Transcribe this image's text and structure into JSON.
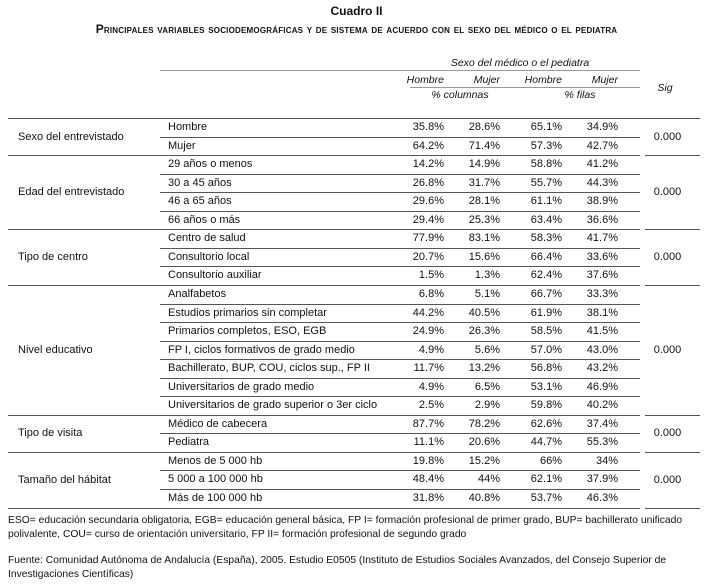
{
  "title": "Cuadro II",
  "subtitle": "Principales variables sociodemográficas y de sistema de acuerdo con el sexo del médico o el pediatra",
  "table": {
    "group_header": "Sexo del médico o el pediatra",
    "columns": [
      "Hombre",
      "Mujer",
      "Hombre",
      "Mujer"
    ],
    "units": [
      "% columnas",
      "% filas"
    ],
    "sig_header": "Sig",
    "groups": [
      {
        "label": "Sexo del entrevistado",
        "sig": "0.000",
        "rows": [
          {
            "label": "Hombre",
            "values": [
              "35.8%",
              "28.6%",
              "65.1%",
              "34.9%"
            ]
          },
          {
            "label": "Mujer",
            "values": [
              "64.2%",
              "71.4%",
              "57.3%",
              "42.7%"
            ]
          }
        ]
      },
      {
        "label": "Edad del entrevistado",
        "sig": "0.000",
        "rows": [
          {
            "label": "29 años o menos",
            "values": [
              "14.2%",
              "14.9%",
              "58.8%",
              "41.2%"
            ]
          },
          {
            "label": "30 a 45 años",
            "values": [
              "26.8%",
              "31.7%",
              "55.7%",
              "44.3%"
            ]
          },
          {
            "label": "46 a 65 años",
            "values": [
              "29.6%",
              "28.1%",
              "61.1%",
              "38.9%"
            ]
          },
          {
            "label": "66 años o más",
            "values": [
              "29.4%",
              "25.3%",
              "63.4%",
              "36.6%"
            ]
          }
        ]
      },
      {
        "label": "Tipo de centro",
        "sig": "0.000",
        "rows": [
          {
            "label": "Centro de salud",
            "values": [
              "77.9%",
              "83.1%",
              "58.3%",
              "41.7%"
            ]
          },
          {
            "label": "Consultorio local",
            "values": [
              "20.7%",
              "15.6%",
              "66.4%",
              "33.6%"
            ]
          },
          {
            "label": "Consultorio auxiliar",
            "values": [
              "1.5%",
              "1.3%",
              "62.4%",
              "37.6%"
            ]
          }
        ]
      },
      {
        "label": "Nivel educativo",
        "sig": "0.000",
        "rows": [
          {
            "label": "Analfabetos",
            "values": [
              "6.8%",
              "5.1%",
              "66.7%",
              "33.3%"
            ]
          },
          {
            "label": "Estudios primarios sin completar",
            "values": [
              "44.2%",
              "40.5%",
              "61.9%",
              "38.1%"
            ]
          },
          {
            "label": "Primarios completos, ESO, EGB",
            "values": [
              "24.9%",
              "26.3%",
              "58.5%",
              "41.5%"
            ]
          },
          {
            "label": "FP I, ciclos formativos de grado medio",
            "values": [
              "4.9%",
              "5.6%",
              "57.0%",
              "43.0%"
            ]
          },
          {
            "label": "Bachillerato, BUP, COU, ciclos sup., FP II",
            "values": [
              "11.7%",
              "13.2%",
              "56.8%",
              "43.2%"
            ]
          },
          {
            "label": "Universitarios de grado medio",
            "values": [
              "4.9%",
              "6.5%",
              "53.1%",
              "46.9%"
            ]
          },
          {
            "label": "Universitarios de grado superior o 3er ciclo",
            "values": [
              "2.5%",
              "2.9%",
              "59.8%",
              "40.2%"
            ]
          }
        ]
      },
      {
        "label": "Tipo de visita",
        "sig": "0.000",
        "rows": [
          {
            "label": "Médico de cabecera",
            "values": [
              "87.7%",
              "78.2%",
              "62.6%",
              "37.4%"
            ]
          },
          {
            "label": "Pediatra",
            "values": [
              "11.1%",
              "20.6%",
              "44.7%",
              "55.3%"
            ]
          }
        ]
      },
      {
        "label": "Tamaño del hábitat",
        "sig": "0.000",
        "rows": [
          {
            "label": "Menos de 5 000 hb",
            "values": [
              "19.8%",
              "15.2%",
              "66%",
              "34%"
            ]
          },
          {
            "label": "5 000 a 100 000 hb",
            "values": [
              "48.4%",
              "44%",
              "62.1%",
              "37.9%"
            ]
          },
          {
            "label": "Más de 100 000 hb",
            "values": [
              "31.8%",
              "40.8%",
              "53.7%",
              "46.3%"
            ]
          }
        ]
      }
    ]
  },
  "notes": "ESO= educación secundaria obligatoria, EGB= educación general básica, FP I= formación profesional de primer grado, BUP= bachillerato unificado polivalente, COU= curso de orientación universitario, FP II= formación profesional de segundo grado",
  "source": "Fuente: Comunidad Autónoma de Andalucía (España), 2005. Estudio E0505 (Instituto de Estudios Sociales Avanzados, del Consejo Superior de Investigaciones Científicas)"
}
